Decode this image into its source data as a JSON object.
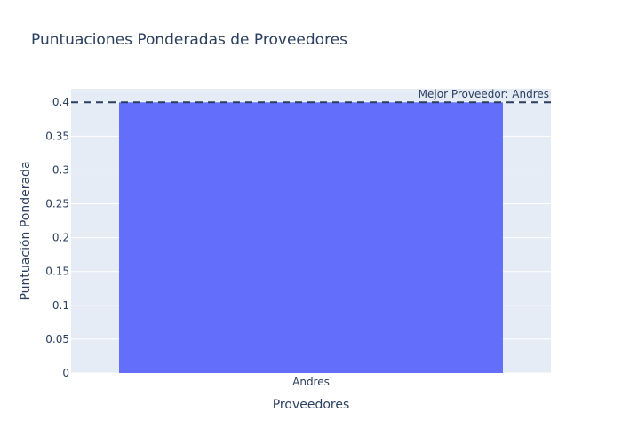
{
  "chart_data": {
    "type": "bar",
    "title": "Puntuaciones Ponderadas de Proveedores",
    "xlabel": "Proveedores",
    "ylabel": "Puntuación Ponderada",
    "categories": [
      "Andres"
    ],
    "series": [
      {
        "values": [
          0.4
        ]
      }
    ],
    "ylim": [
      0,
      0.42
    ],
    "yticks": [
      "0",
      "0.05",
      "0.1",
      "0.15",
      "0.2",
      "0.25",
      "0.3",
      "0.35",
      "0.4"
    ],
    "ytick_values": [
      0,
      0.05,
      0.1,
      0.15,
      0.2,
      0.25,
      0.3,
      0.35,
      0.4
    ],
    "grid": true,
    "reference_line": {
      "y": 0.4,
      "style": "dashed",
      "color": "#2a3f5f",
      "label": "Mejor Proveedor: Andres"
    },
    "colors": {
      "bar": "#636efa",
      "plot_background": "#e5ecf6",
      "grid": "#ffffff",
      "text": "#2a3f5f"
    }
  }
}
